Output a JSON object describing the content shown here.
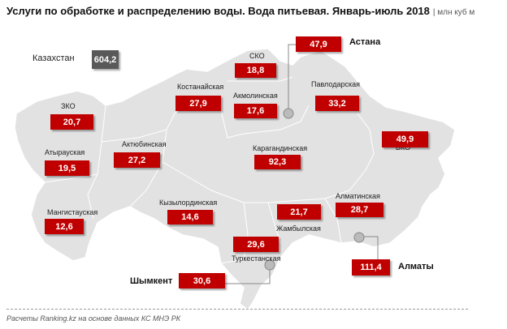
{
  "title": "Услуги по обработке и распределению воды. Вода питьевая. Январь-июль 2018",
  "unit": "| млн куб м",
  "total": {
    "label": "Казахстан",
    "value": "604,2",
    "color": "#595959"
  },
  "accent_color": "#c00000",
  "regions": [
    {
      "name": "Астана",
      "value": "47,9"
    },
    {
      "name": "СКО",
      "value": "18,8"
    },
    {
      "name": "Костанайская",
      "value": "27,9"
    },
    {
      "name": "Акмолинская",
      "value": "17,6"
    },
    {
      "name": "Павлодарская",
      "value": "33,2"
    },
    {
      "name": "ЗКО",
      "value": "20,7"
    },
    {
      "name": "ВКО",
      "value": "49,9"
    },
    {
      "name": "Атырауская",
      "value": "19,5"
    },
    {
      "name": "Актюбинская",
      "value": "27,2"
    },
    {
      "name": "Карагандинская",
      "value": "92,3"
    },
    {
      "name": "Кызылординская",
      "value": "14,6"
    },
    {
      "name": "Мангистауская",
      "value": "12,6"
    },
    {
      "name": "Жамбылская",
      "value": "21,7"
    },
    {
      "name": "Алматинская",
      "value": "28,7"
    },
    {
      "name": "Туркестанская",
      "value": "29,6"
    },
    {
      "name": "Шымкент",
      "value": "30,6"
    },
    {
      "name": "Алматы",
      "value": "111,4"
    }
  ],
  "source": "Расчеты Ranking.kz на основе данных  КС МНЭ РК"
}
